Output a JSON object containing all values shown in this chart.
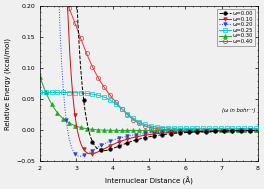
{
  "title": "",
  "xlabel": "Internuclear Distance (Å)",
  "ylabel": "Relative Energy (kcal/mol)",
  "xlim": [
    2,
    8
  ],
  "ylim": [
    -0.05,
    0.2
  ],
  "xticks": [
    2,
    3,
    4,
    5,
    6,
    7,
    8
  ],
  "yticks": [
    -0.05,
    0,
    0.05,
    0.1,
    0.15,
    0.2
  ],
  "series": [
    {
      "label": "ω=0.00",
      "color": "black",
      "marker": "o",
      "linestyle": "--",
      "fillstyle": "full",
      "linewidth": 0.7,
      "r0": 3.75,
      "De": 0.033,
      "type": "lj"
    },
    {
      "label": "ω=0.10",
      "color": "red",
      "marker": "v",
      "linestyle": "-",
      "fillstyle": "full",
      "linewidth": 0.7,
      "r0": 3.4,
      "De": 0.038,
      "type": "lj"
    },
    {
      "label": "ω=0.20",
      "color": "blue",
      "marker": "v",
      "linestyle": ":",
      "fillstyle": "full",
      "linewidth": 0.7,
      "r0": 3.1,
      "De": 0.042,
      "type": "lj"
    },
    {
      "label": "ω=0.25",
      "color": "cyan",
      "marker": "s",
      "linestyle": "-",
      "fillstyle": "none",
      "linewidth": 0.7,
      "type": "custom25"
    },
    {
      "label": "ω=0.30",
      "color": "green",
      "marker": "^",
      "linestyle": "-",
      "fillstyle": "full",
      "linewidth": 0.7,
      "type": "custom30"
    },
    {
      "label": "ω=0.40",
      "color": "red",
      "marker": "o",
      "linestyle": "-",
      "fillstyle": "none",
      "linewidth": 0.7,
      "type": "custom40"
    }
  ],
  "annotation": "(ω in bohr⁻¹)",
  "background_color": "#f0f0f0",
  "font_size": 5,
  "tick_fontsize": 4.5,
  "markersizes": [
    2.5,
    2.5,
    2.5,
    2.5,
    2.8,
    3.0
  ],
  "marker_every": [
    12,
    12,
    12,
    8,
    8,
    8
  ]
}
